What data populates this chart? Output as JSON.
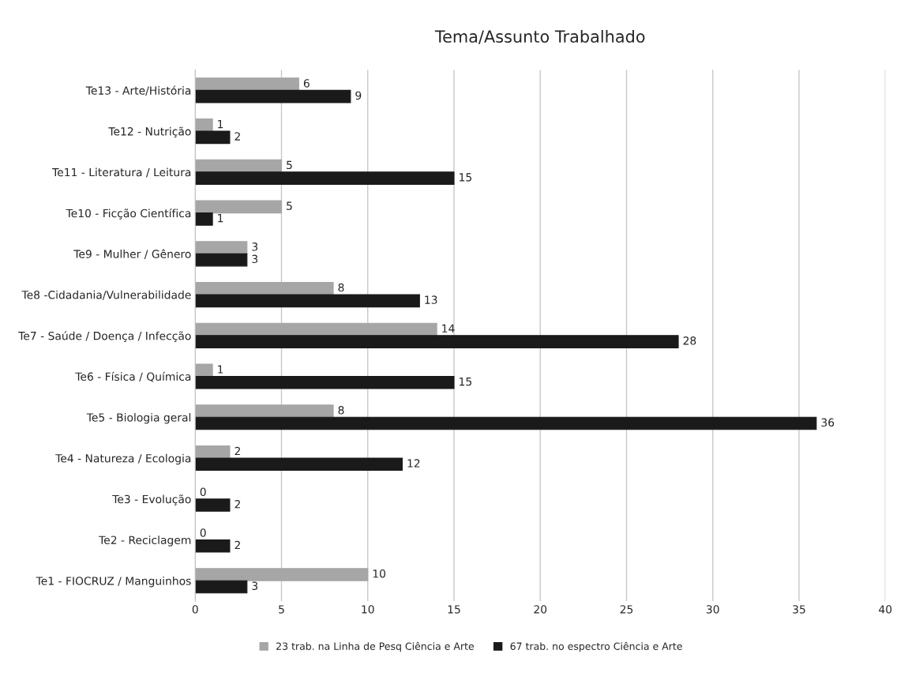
{
  "chart_data": {
    "type": "bar",
    "orientation": "horizontal",
    "title": "Tema/Assunto Trabalhado",
    "categories": [
      "Te13 - Arte/História",
      "Te12 - Nutrição",
      "Te11 - Literatura / Leitura",
      "Te10 - Ficção Científica",
      "Te9 - Mulher / Gênero",
      "Te8 -Cidadania/Vulnerabilidade",
      "Te7 - Saúde / Doença / Infecção",
      "Te6 - Física / Química",
      "Te5 - Biologia geral",
      "Te4 - Natureza / Ecologia",
      "Te3 - Evolução",
      "Te2 - Reciclagem",
      "Te1 - FIOCRUZ / Manguinhos"
    ],
    "series": [
      {
        "name": "23 trab. na Linha de Pesq Ciência e Arte",
        "color": "#a6a6a6",
        "values": [
          6,
          1,
          5,
          5,
          3,
          8,
          14,
          1,
          8,
          2,
          0,
          0,
          10
        ]
      },
      {
        "name": "67 trab. no espectro Ciência e Arte",
        "color": "#1a1a1a",
        "values": [
          9,
          2,
          15,
          1,
          3,
          13,
          28,
          15,
          36,
          12,
          2,
          2,
          3
        ]
      }
    ],
    "xlim": [
      0,
      40
    ],
    "xticks": [
      0,
      5,
      10,
      15,
      20,
      25,
      30,
      35,
      40
    ],
    "grid": "x",
    "legend": "bottom",
    "data_labels": true
  }
}
